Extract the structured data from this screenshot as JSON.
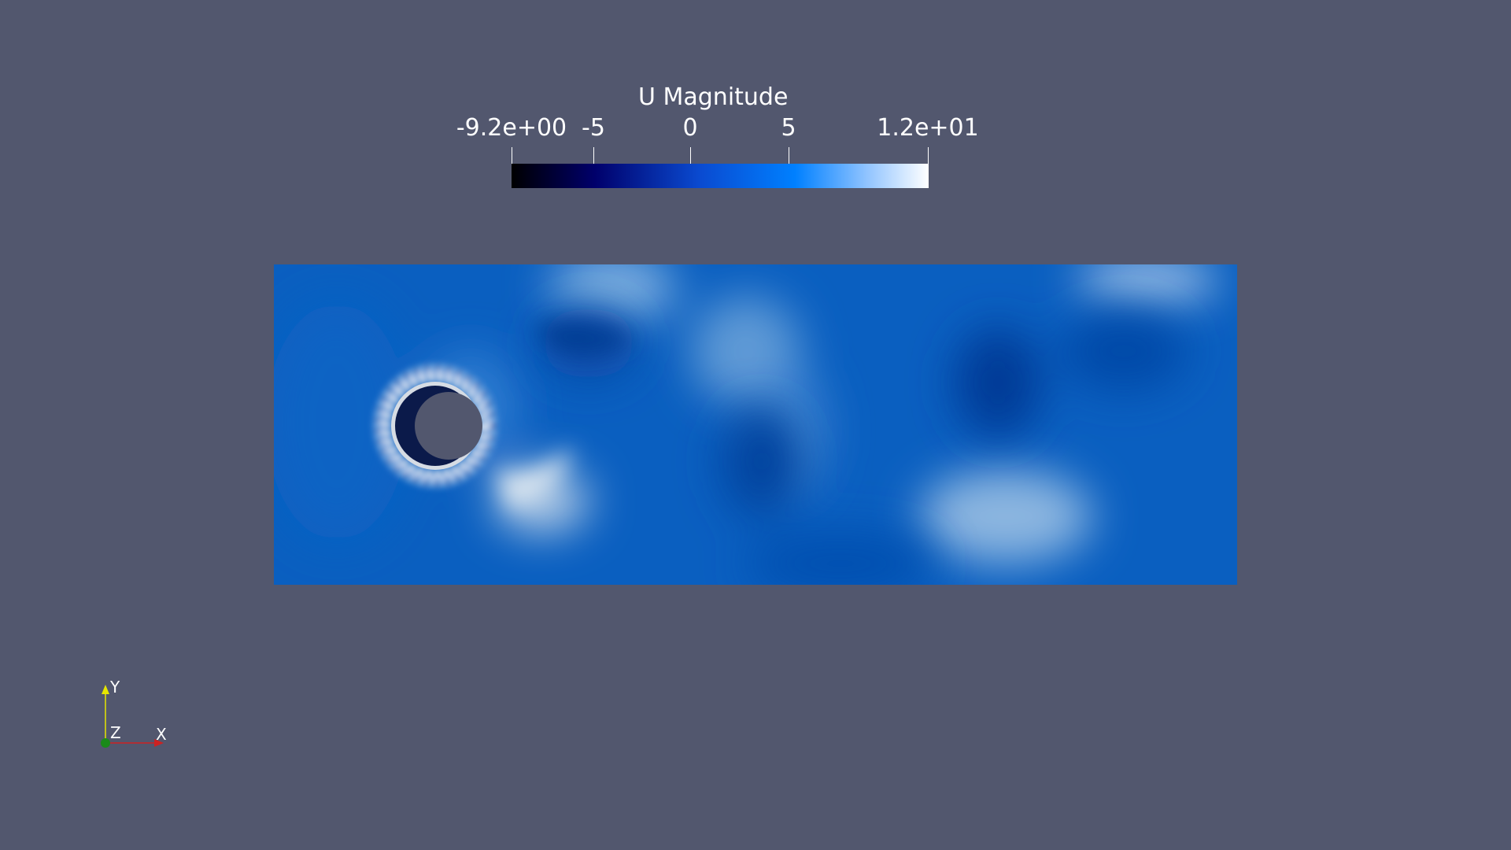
{
  "colorbar": {
    "title": "U Magnitude",
    "range": [
      -9.2,
      12
    ],
    "tick_labels": [
      "-9.2e+00",
      "-5",
      "0",
      "5",
      "1.2e+01"
    ],
    "tick_values": [
      -9.2,
      -5,
      0,
      5,
      12
    ],
    "colors": [
      "#000000",
      "#00006b",
      "#0a4ad0",
      "#0080ff",
      "#8fc3ff",
      "#ffffff"
    ]
  },
  "field": {
    "obstacle": "cylinder",
    "domain_color": "#0a5fc0"
  },
  "orientation_axes": {
    "x_label": "X",
    "y_label": "Y",
    "z_label": "Z",
    "x_color": "#cc2222",
    "y_color": "#e6e600",
    "z_color": "#1a8a1a"
  },
  "background_color": "#52576e"
}
